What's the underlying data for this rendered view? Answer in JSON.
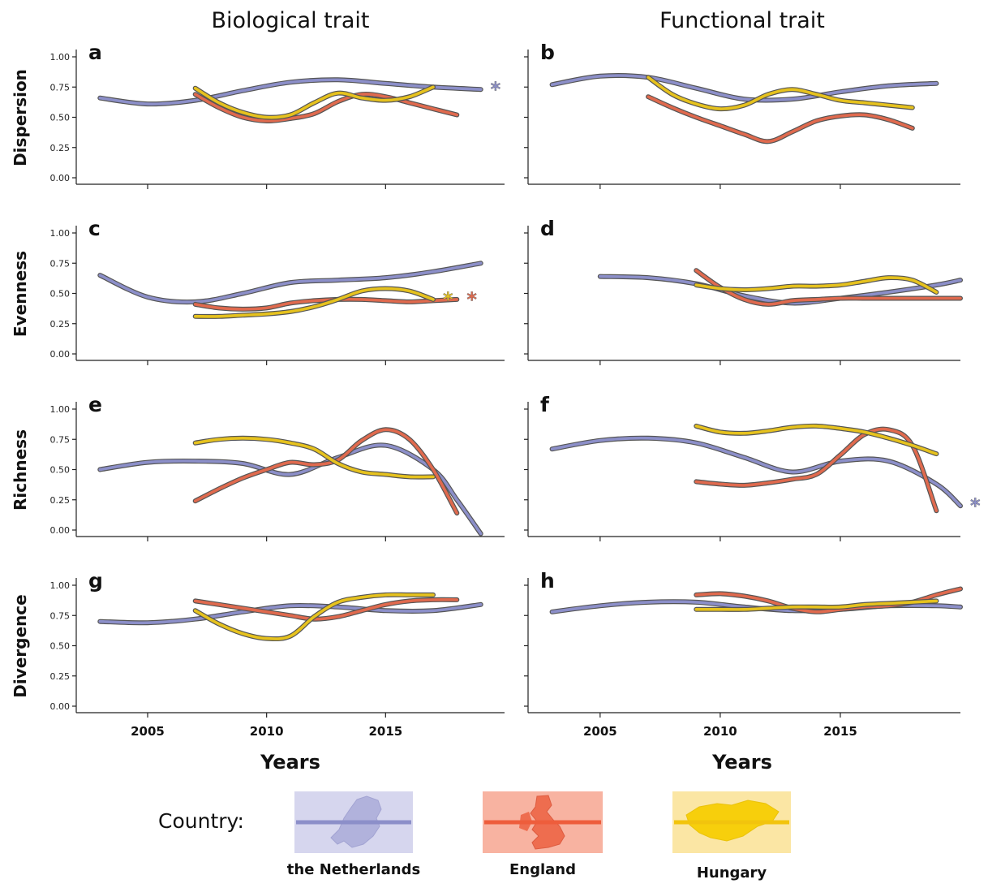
{
  "column_titles": [
    "Biological trait",
    "Functional trait"
  ],
  "row_labels": [
    "Dispersion",
    "Evenness",
    "Richness",
    "Divergence"
  ],
  "x_axis_title": "Years",
  "legend": {
    "title": "Country:",
    "items": [
      {
        "name": "the Netherlands",
        "color": "#8c8fc9",
        "icon": "netherlands-map-icon"
      },
      {
        "name": "England",
        "color": "#e06a4e",
        "icon": "great-britain-map-icon"
      },
      {
        "name": "Hungary",
        "color": "#e6c21e",
        "icon": "hungary-map-icon"
      }
    ]
  },
  "colors": {
    "Netherlands": "#8c8fc9",
    "England": "#e06a4e",
    "Hungary": "#e6c21e",
    "outline": "#555555"
  },
  "chart_data": [
    {
      "panel": "a",
      "type": "line",
      "row": "Dispersion",
      "column": "Biological trait",
      "xlim": [
        2002,
        2020
      ],
      "ylim": [
        0,
        1
      ],
      "xticks": [
        2005,
        2010,
        2015
      ],
      "yticks": [
        "0.00",
        "0.25",
        "0.50",
        "0.75",
        "1.00"
      ],
      "series": [
        {
          "name": "the Netherlands",
          "x": [
            2003,
            2005,
            2007,
            2009,
            2011,
            2013,
            2015,
            2017,
            2019
          ],
          "y": [
            0.66,
            0.61,
            0.64,
            0.72,
            0.79,
            0.81,
            0.78,
            0.75,
            0.73
          ]
        },
        {
          "name": "England",
          "x": [
            2007,
            2008,
            2009,
            2010,
            2011,
            2012,
            2013,
            2014,
            2015,
            2016,
            2017,
            2018
          ],
          "y": [
            0.69,
            0.58,
            0.5,
            0.47,
            0.49,
            0.53,
            0.63,
            0.69,
            0.67,
            0.62,
            0.57,
            0.52
          ]
        },
        {
          "name": "Hungary",
          "x": [
            2007,
            2008,
            2009,
            2010,
            2011,
            2012,
            2013,
            2014,
            2015,
            2016,
            2017
          ],
          "y": [
            0.74,
            0.62,
            0.54,
            0.5,
            0.52,
            0.62,
            0.7,
            0.66,
            0.64,
            0.67,
            0.75
          ]
        }
      ],
      "significant": [
        "the Netherlands"
      ]
    },
    {
      "panel": "b",
      "type": "line",
      "row": "Dispersion",
      "column": "Functional trait",
      "xlim": [
        2002,
        2020
      ],
      "ylim": [
        0,
        1
      ],
      "xticks": [
        2005,
        2010,
        2015
      ],
      "yticks": [],
      "series": [
        {
          "name": "the Netherlands",
          "x": [
            2003,
            2005,
            2007,
            2009,
            2011,
            2013,
            2015,
            2017,
            2019
          ],
          "y": [
            0.77,
            0.84,
            0.83,
            0.74,
            0.65,
            0.65,
            0.71,
            0.76,
            0.78
          ]
        },
        {
          "name": "England",
          "x": [
            2007,
            2008,
            2009,
            2010,
            2011,
            2012,
            2013,
            2014,
            2015,
            2016,
            2017,
            2018
          ],
          "y": [
            0.67,
            0.58,
            0.5,
            0.43,
            0.36,
            0.3,
            0.38,
            0.47,
            0.51,
            0.52,
            0.48,
            0.41
          ]
        },
        {
          "name": "Hungary",
          "x": [
            2007,
            2008,
            2009,
            2010,
            2011,
            2012,
            2013,
            2014,
            2015,
            2016,
            2017,
            2018
          ],
          "y": [
            0.83,
            0.69,
            0.61,
            0.57,
            0.6,
            0.69,
            0.73,
            0.69,
            0.64,
            0.62,
            0.6,
            0.58
          ]
        }
      ],
      "significant": []
    },
    {
      "panel": "c",
      "type": "line",
      "row": "Evenness",
      "column": "Biological trait",
      "xlim": [
        2002,
        2020
      ],
      "ylim": [
        0,
        1
      ],
      "xticks": [
        2005,
        2010,
        2015
      ],
      "yticks": [
        "0.00",
        "0.25",
        "0.50",
        "0.75",
        "1.00"
      ],
      "series": [
        {
          "name": "the Netherlands",
          "x": [
            2003,
            2005,
            2007,
            2009,
            2011,
            2013,
            2015,
            2017,
            2019
          ],
          "y": [
            0.65,
            0.47,
            0.43,
            0.5,
            0.59,
            0.61,
            0.63,
            0.68,
            0.75
          ]
        },
        {
          "name": "England",
          "x": [
            2007,
            2008,
            2009,
            2010,
            2011,
            2012,
            2013,
            2014,
            2015,
            2016,
            2017,
            2018
          ],
          "y": [
            0.41,
            0.38,
            0.37,
            0.38,
            0.42,
            0.44,
            0.45,
            0.45,
            0.44,
            0.43,
            0.44,
            0.45
          ]
        },
        {
          "name": "Hungary",
          "x": [
            2007,
            2008,
            2009,
            2010,
            2011,
            2012,
            2013,
            2014,
            2015,
            2016,
            2017
          ],
          "y": [
            0.31,
            0.31,
            0.32,
            0.33,
            0.35,
            0.39,
            0.45,
            0.52,
            0.54,
            0.52,
            0.45
          ]
        }
      ],
      "significant": [
        "Hungary",
        "England"
      ]
    },
    {
      "panel": "d",
      "type": "line",
      "row": "Evenness",
      "column": "Functional trait",
      "xlim": [
        2002,
        2020
      ],
      "ylim": [
        0,
        1
      ],
      "xticks": [
        2005,
        2010,
        2015
      ],
      "yticks": [],
      "series": [
        {
          "name": "the Netherlands",
          "x": [
            2005,
            2007,
            2009,
            2011,
            2013,
            2015,
            2017,
            2019,
            2020
          ],
          "y": [
            0.64,
            0.63,
            0.58,
            0.48,
            0.42,
            0.46,
            0.51,
            0.57,
            0.61
          ]
        },
        {
          "name": "England",
          "x": [
            2009,
            2010,
            2011,
            2012,
            2013,
            2014,
            2015,
            2016,
            2017,
            2018,
            2019,
            2020
          ],
          "y": [
            0.69,
            0.55,
            0.45,
            0.41,
            0.44,
            0.45,
            0.46,
            0.46,
            0.46,
            0.46,
            0.46,
            0.46
          ]
        },
        {
          "name": "Hungary",
          "x": [
            2009,
            2010,
            2011,
            2012,
            2013,
            2014,
            2015,
            2016,
            2017,
            2018,
            2019
          ],
          "y": [
            0.57,
            0.54,
            0.53,
            0.54,
            0.56,
            0.56,
            0.57,
            0.6,
            0.63,
            0.61,
            0.51
          ]
        }
      ],
      "significant": []
    },
    {
      "panel": "e",
      "type": "line",
      "row": "Richness",
      "column": "Biological trait",
      "xlim": [
        2002,
        2020
      ],
      "ylim": [
        0,
        1
      ],
      "xticks": [
        2005,
        2010,
        2015
      ],
      "yticks": [
        "0.00",
        "0.25",
        "0.50",
        "0.75",
        "1.00"
      ],
      "series": [
        {
          "name": "the Netherlands",
          "x": [
            2003,
            2005,
            2007,
            2009,
            2011,
            2013,
            2015,
            2017,
            2018,
            2019
          ],
          "y": [
            0.5,
            0.56,
            0.57,
            0.55,
            0.46,
            0.6,
            0.7,
            0.5,
            0.25,
            -0.03
          ]
        },
        {
          "name": "England",
          "x": [
            2007,
            2008,
            2009,
            2010,
            2011,
            2012,
            2013,
            2014,
            2015,
            2016,
            2017,
            2018
          ],
          "y": [
            0.24,
            0.34,
            0.43,
            0.5,
            0.56,
            0.54,
            0.58,
            0.74,
            0.83,
            0.75,
            0.5,
            0.14
          ]
        },
        {
          "name": "Hungary",
          "x": [
            2007,
            2008,
            2009,
            2010,
            2011,
            2012,
            2013,
            2014,
            2015,
            2016,
            2017
          ],
          "y": [
            0.72,
            0.75,
            0.76,
            0.75,
            0.72,
            0.67,
            0.55,
            0.48,
            0.46,
            0.44,
            0.44
          ]
        }
      ],
      "significant": []
    },
    {
      "panel": "f",
      "type": "line",
      "row": "Richness",
      "column": "Functional trait",
      "xlim": [
        2002,
        2020
      ],
      "ylim": [
        0,
        1
      ],
      "xticks": [
        2005,
        2010,
        2015
      ],
      "yticks": [],
      "series": [
        {
          "name": "the Netherlands",
          "x": [
            2003,
            2005,
            2007,
            2009,
            2011,
            2013,
            2015,
            2017,
            2019,
            2020
          ],
          "y": [
            0.67,
            0.74,
            0.76,
            0.72,
            0.6,
            0.48,
            0.57,
            0.57,
            0.38,
            0.2
          ]
        },
        {
          "name": "England",
          "x": [
            2009,
            2010,
            2011,
            2012,
            2013,
            2014,
            2015,
            2016,
            2017,
            2018,
            2019
          ],
          "y": [
            0.4,
            0.38,
            0.37,
            0.39,
            0.42,
            0.46,
            0.62,
            0.79,
            0.83,
            0.7,
            0.16
          ]
        },
        {
          "name": "Hungary",
          "x": [
            2009,
            2010,
            2011,
            2012,
            2013,
            2014,
            2015,
            2016,
            2017,
            2018,
            2019
          ],
          "y": [
            0.86,
            0.81,
            0.8,
            0.82,
            0.85,
            0.86,
            0.84,
            0.81,
            0.76,
            0.7,
            0.63
          ]
        }
      ],
      "significant": [
        "the Netherlands"
      ]
    },
    {
      "panel": "g",
      "type": "line",
      "row": "Divergence",
      "column": "Biological trait",
      "xlim": [
        2002,
        2020
      ],
      "ylim": [
        0,
        1
      ],
      "xticks": [
        2005,
        2010,
        2015
      ],
      "yticks": [
        "0.00",
        "0.25",
        "0.50",
        "0.75",
        "1.00"
      ],
      "series": [
        {
          "name": "the Netherlands",
          "x": [
            2003,
            2005,
            2007,
            2009,
            2011,
            2013,
            2015,
            2017,
            2019
          ],
          "y": [
            0.7,
            0.69,
            0.72,
            0.78,
            0.83,
            0.82,
            0.79,
            0.79,
            0.84
          ]
        },
        {
          "name": "England",
          "x": [
            2007,
            2008,
            2009,
            2010,
            2011,
            2012,
            2013,
            2014,
            2015,
            2016,
            2017,
            2018
          ],
          "y": [
            0.87,
            0.84,
            0.81,
            0.78,
            0.75,
            0.72,
            0.74,
            0.79,
            0.84,
            0.87,
            0.88,
            0.88
          ]
        },
        {
          "name": "Hungary",
          "x": [
            2007,
            2008,
            2009,
            2010,
            2011,
            2012,
            2013,
            2014,
            2015,
            2016,
            2017
          ],
          "y": [
            0.79,
            0.68,
            0.6,
            0.56,
            0.58,
            0.74,
            0.86,
            0.9,
            0.92,
            0.92,
            0.92
          ]
        }
      ],
      "significant": []
    },
    {
      "panel": "h",
      "type": "line",
      "row": "Divergence",
      "column": "Functional trait",
      "xlim": [
        2002,
        2020
      ],
      "ylim": [
        0,
        1
      ],
      "xticks": [
        2005,
        2010,
        2015
      ],
      "yticks": [],
      "series": [
        {
          "name": "the Netherlands",
          "x": [
            2003,
            2005,
            2007,
            2009,
            2011,
            2013,
            2015,
            2017,
            2019,
            2020
          ],
          "y": [
            0.78,
            0.83,
            0.86,
            0.86,
            0.82,
            0.79,
            0.8,
            0.83,
            0.83,
            0.82
          ]
        },
        {
          "name": "England",
          "x": [
            2009,
            2010,
            2011,
            2012,
            2013,
            2014,
            2015,
            2016,
            2017,
            2018,
            2019,
            2020
          ],
          "y": [
            0.92,
            0.93,
            0.91,
            0.87,
            0.81,
            0.78,
            0.8,
            0.82,
            0.83,
            0.86,
            0.92,
            0.97
          ]
        },
        {
          "name": "Hungary",
          "x": [
            2009,
            2010,
            2011,
            2012,
            2013,
            2014,
            2015,
            2016,
            2017,
            2018,
            2019
          ],
          "y": [
            0.8,
            0.8,
            0.8,
            0.81,
            0.82,
            0.82,
            0.82,
            0.84,
            0.85,
            0.86,
            0.87
          ]
        }
      ],
      "significant": []
    }
  ]
}
